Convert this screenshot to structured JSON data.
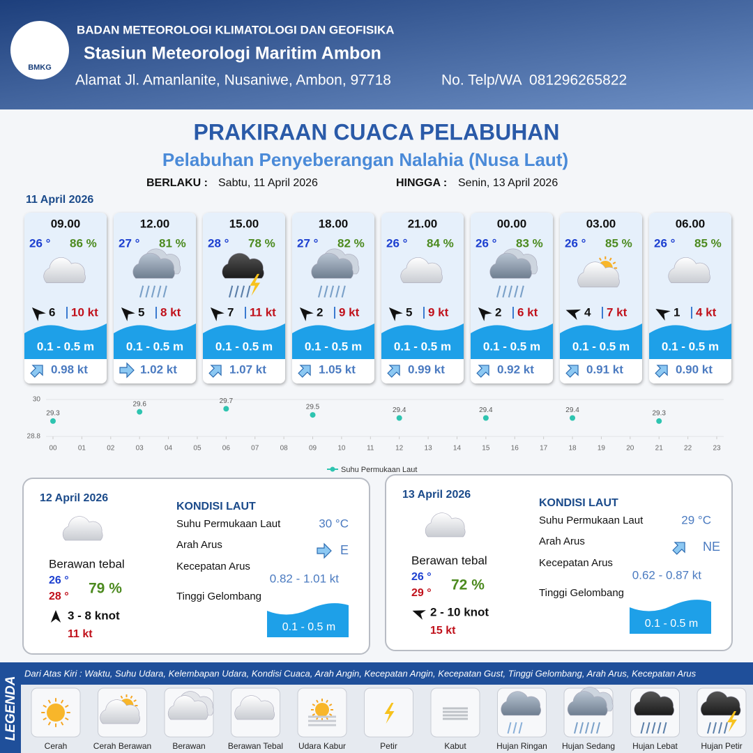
{
  "header": {
    "logo": "BMKG",
    "agency": "BADAN METEOROLOGI KLIMATOLOGI DAN GEOFISIKA",
    "station": "Stasiun Meteorologi Maritim Ambon",
    "address": "Alamat Jl. Amanlanite, Nusaniwe, Ambon, 97718",
    "phone": "No. Telp/WA  081296265822"
  },
  "title": "PRAKIRAAN CUACA PELABUHAN",
  "subtitle": "Pelabuhan Penyeberangan Nalahia (Nusa Laut)",
  "validity": {
    "from_label": "BERLAKU :",
    "from": "Sabtu, 11 April 2026",
    "to_label": "HINGGA :",
    "to": "Senin, 13 April 2026"
  },
  "day1": {
    "date": "11 April 2026",
    "forecasts": [
      {
        "time": "09.00",
        "temp": "26 °",
        "humidity": "86 %",
        "wind": "6",
        "gust": "10 kt",
        "wave": "0.1 - 0.5 m",
        "current": "0.98 kt"
      },
      {
        "time": "12.00",
        "temp": "27 °",
        "humidity": "81 %",
        "wind": "5",
        "gust": "8 kt",
        "wave": "0.1 - 0.5 m",
        "current": "1.02 kt"
      },
      {
        "time": "15.00",
        "temp": "28 °",
        "humidity": "78 %",
        "wind": "7",
        "gust": "11 kt",
        "wave": "0.1 - 0.5 m",
        "current": "1.07 kt"
      },
      {
        "time": "18.00",
        "temp": "27 °",
        "humidity": "82 %",
        "wind": "2",
        "gust": "9 kt",
        "wave": "0.1 - 0.5 m",
        "current": "1.05 kt"
      },
      {
        "time": "21.00",
        "temp": "26 °",
        "humidity": "84 %",
        "wind": "5",
        "gust": "9 kt",
        "wave": "0.1 - 0.5 m",
        "current": "0.99 kt"
      },
      {
        "time": "00.00",
        "temp": "26 °",
        "humidity": "83 %",
        "wind": "2",
        "gust": "6 kt",
        "wave": "0.1 - 0.5 m",
        "current": "0.92 kt"
      },
      {
        "time": "03.00",
        "temp": "26 °",
        "humidity": "85 %",
        "wind": "4",
        "gust": "7 kt",
        "wave": "0.1 - 0.5 m",
        "current": "0.91 kt"
      },
      {
        "time": "06.00",
        "temp": "26 °",
        "humidity": "85 %",
        "wind": "1",
        "gust": "4 kt",
        "wave": "0.1 - 0.5 m",
        "current": "0.90 kt"
      }
    ]
  },
  "chart_data": {
    "type": "scatter",
    "x": [
      0,
      3,
      6,
      9,
      12,
      15,
      18,
      21
    ],
    "series": [
      {
        "name": "Suhu Permukaan Laut",
        "color": "#2ec4b0",
        "values": [
          29.3,
          29.6,
          29.7,
          29.5,
          29.4,
          29.4,
          29.4,
          29.3
        ]
      }
    ],
    "xlim": [
      0,
      23
    ],
    "xticks": [
      {
        "value": 0,
        "label": "00"
      },
      {
        "value": 1,
        "label": "01"
      },
      {
        "value": 2,
        "label": "02"
      },
      {
        "value": 3,
        "label": "03"
      },
      {
        "value": 4,
        "label": "04"
      },
      {
        "value": 5,
        "label": "05"
      },
      {
        "value": 6,
        "label": "06"
      },
      {
        "value": 7,
        "label": "07"
      },
      {
        "value": 8,
        "label": "08"
      },
      {
        "value": 9,
        "label": "09"
      },
      10,
      11,
      12,
      13,
      14,
      15,
      16,
      17,
      18,
      19,
      20,
      21,
      22,
      23
    ],
    "ylim": [
      28.8,
      30
    ],
    "yticks": [
      28.8,
      30
    ],
    "grid": true
  },
  "days": [
    {
      "date": "12 April 2026",
      "heading": "KONDISI LAUT",
      "sst_label": "Suhu Permukaan Laut",
      "sst": "30 °C",
      "dir_label": "Arah Arus",
      "dir": "E",
      "speed_label": "Kecepatan Arus",
      "speed": "0.82 - 1.01 kt",
      "wave_label": "Tinggi Gelombang",
      "wave": "0.1 - 0.5 m",
      "condition": "Berawan tebal",
      "temp_min": "26 °",
      "temp_max": "28 °",
      "humidity": "79 %",
      "wind": "3  - 8 knot",
      "gust": "11 kt"
    },
    {
      "date": "13 April 2026",
      "heading": "KONDISI LAUT",
      "sst_label": "Suhu Permukaan Laut",
      "sst": "29 °C",
      "dir_label": "Arah Arus",
      "dir": "NE",
      "speed_label": "Kecepatan Arus",
      "speed": "0.62 - 0.87 kt",
      "wave_label": "Tinggi Gelombang",
      "wave": "0.1 - 0.5 m",
      "condition": "Berawan tebal",
      "temp_min": "26 °",
      "temp_max": "29 °",
      "humidity": "72 %",
      "wind": "2  - 10 knot",
      "gust": "15 kt"
    }
  ],
  "legend": {
    "title": "LEGENDA",
    "description": "Dari Atas Kiri : Waktu, Suhu Udara, Kelembapan Udara, Kondisi Cuaca, Arah Angin, Kecepatan Angin, Kecepatan Gust, Tinggi Gelombang, Arah Arus, Kecepatan Arus",
    "items": [
      "Cerah",
      "Cerah Berawan",
      "Berawan",
      "Berawan Tebal",
      "Udara Kabur",
      "Petir",
      "Kabut",
      "Hujan Ringan",
      "Hujan Sedang",
      "Hujan Lebat",
      "Hujan Petir"
    ]
  }
}
